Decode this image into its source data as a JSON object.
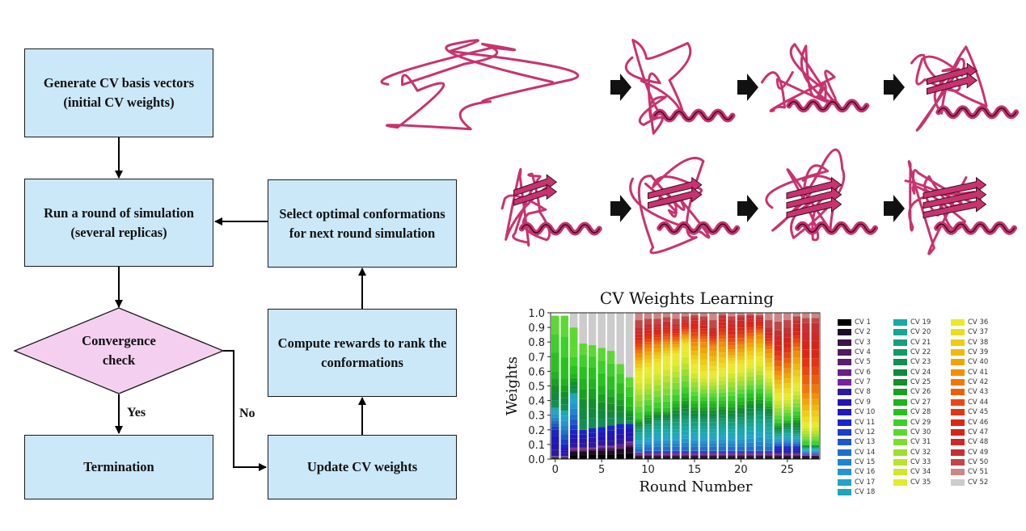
{
  "flowchart": {
    "nodes": {
      "generate": "Generate CV basis vectors (initial CV weights)",
      "run": "Run a round of simulation (several replicas)",
      "select": "Select optimal conformations for next round simulation",
      "convergence": "Convergence check",
      "compute": "Compute rewards to rank the conformations",
      "termination": "Termination",
      "update": "Update CV weights"
    },
    "edge_labels": {
      "yes": "Yes",
      "no": "No"
    }
  },
  "protein_panel": {
    "rows": 2,
    "frames_per_row": 4,
    "ribbon_color": "#c8336f"
  },
  "chart_data": {
    "type": "bar",
    "stacked": true,
    "title": "CV Weights Learning",
    "xlabel": "Round Number",
    "ylabel": "Weights",
    "x": [
      0,
      1,
      2,
      3,
      4,
      5,
      6,
      7,
      8,
      9,
      10,
      11,
      12,
      13,
      14,
      15,
      16,
      17,
      18,
      19,
      20,
      21,
      22,
      23,
      24,
      25,
      26,
      27,
      28
    ],
    "xticks": [
      0,
      5,
      10,
      15,
      20,
      25
    ],
    "ylim": [
      0,
      1.0
    ],
    "yticks": [
      "0.0",
      "0.1",
      "0.2",
      "0.3",
      "0.4",
      "0.5",
      "0.6",
      "0.7",
      "0.8",
      "0.9",
      "1.0"
    ],
    "legend_placement": "right, outside plot, 3 columns",
    "series_colors": [
      "#000000",
      "#1e0b26",
      "#3a1445",
      "#4e1a60",
      "#5b1c72",
      "#6a1f88",
      "#7a1fa0",
      "#2c1aa0",
      "#2414b0",
      "#1d18bf",
      "#1a25c8",
      "#1a3ec8",
      "#1c59c8",
      "#1f70c8",
      "#2284cb",
      "#2595d0",
      "#21a4c9",
      "#1da6b8",
      "#19a9a6",
      "#18a592",
      "#179f7d",
      "#139a68",
      "#118f52",
      "#0f8a3e",
      "#128f2a",
      "#17a21e",
      "#1db51c",
      "#28c21f",
      "#3bd02a",
      "#5cd833",
      "#80dc32",
      "#9ddf2d",
      "#b9e42b",
      "#cfe929",
      "#e4ec29",
      "#eee82b",
      "#eedc1f",
      "#eecd14",
      "#f0ba0c",
      "#f1a504",
      "#f28f05",
      "#f17706",
      "#ee5e0a",
      "#ea470f",
      "#e43412",
      "#de2616",
      "#d72418",
      "#cf2828",
      "#c53030",
      "#c24646",
      "#cd8585",
      "#cccccc"
    ],
    "legend": [
      "CV 1",
      "CV 2",
      "CV 3",
      "CV 4",
      "CV 5",
      "CV 6",
      "CV 7",
      "CV 8",
      "CV 9",
      "CV 10",
      "CV 11",
      "CV 12",
      "CV 13",
      "CV 14",
      "CV 15",
      "CV 16",
      "CV 17",
      "CV 18",
      "CV 19",
      "CV 20",
      "CV 21",
      "CV 22",
      "CV 23",
      "CV 24",
      "CV 25",
      "CV 26",
      "CV 27",
      "CV 28",
      "CV 29",
      "CV 30",
      "CV 31",
      "CV 32",
      "CV 33",
      "CV 34",
      "CV 35",
      "CV 36",
      "CV 37",
      "CV 38",
      "CV 39",
      "CV 40",
      "CV 41",
      "CV 42",
      "CV 43",
      "CV 44",
      "CV 45",
      "CV 46",
      "CV 47",
      "CV 48",
      "CV 49",
      "CV 50",
      "CV 51",
      "CV 52"
    ],
    "group_boundaries": [
      0.02,
      0.05,
      0.2,
      0.35,
      0.6,
      0.75,
      0.87,
      1.0
    ],
    "bars": [
      {
        "x": 0,
        "groups": [
          0.01,
          0.02,
          0.2,
          0.35,
          0.6,
          0.98,
          0.98,
          0.98
        ]
      },
      {
        "x": 1,
        "groups": [
          0.01,
          0.02,
          0.1,
          0.33,
          0.55,
          0.98,
          0.98,
          0.98
        ]
      },
      {
        "x": 2,
        "groups": [
          0.05,
          0.08,
          0.2,
          0.45,
          0.58,
          0.76,
          0.9,
          1.0
        ]
      },
      {
        "x": 3,
        "groups": [
          0.05,
          0.08,
          0.2,
          0.2,
          0.55,
          0.79,
          0.79,
          1.0
        ]
      },
      {
        "x": 4,
        "groups": [
          0.06,
          0.08,
          0.21,
          0.21,
          0.55,
          0.78,
          0.78,
          1.0
        ]
      },
      {
        "x": 5,
        "groups": [
          0.06,
          0.09,
          0.22,
          0.22,
          0.5,
          0.76,
          0.76,
          1.0
        ]
      },
      {
        "x": 6,
        "groups": [
          0.06,
          0.09,
          0.23,
          0.23,
          0.48,
          0.74,
          0.74,
          1.0
        ]
      },
      {
        "x": 7,
        "groups": [
          0.07,
          0.1,
          0.24,
          0.24,
          0.45,
          0.65,
          0.65,
          1.0
        ]
      },
      {
        "x": 8,
        "groups": [
          0.08,
          0.12,
          0.24,
          0.24,
          0.36,
          0.56,
          0.56,
          1.0
        ]
      },
      {
        "x": 9,
        "groups": [
          0.02,
          0.04,
          0.05,
          0.2,
          0.28,
          0.6,
          0.72,
          0.9,
          1.0
        ]
      },
      {
        "x": 10,
        "groups": [
          0.02,
          0.04,
          0.06,
          0.22,
          0.33,
          0.63,
          0.76,
          0.92,
          1.0
        ]
      },
      {
        "x": 11,
        "groups": [
          0.02,
          0.04,
          0.06,
          0.25,
          0.35,
          0.66,
          0.78,
          0.92,
          1.0
        ]
      },
      {
        "x": 12,
        "groups": [
          0.02,
          0.04,
          0.06,
          0.25,
          0.35,
          0.7,
          0.8,
          0.94,
          1.0
        ]
      },
      {
        "x": 13,
        "groups": [
          0.02,
          0.04,
          0.06,
          0.25,
          0.4,
          0.72,
          0.8,
          0.92,
          1.0
        ]
      },
      {
        "x": 14,
        "groups": [
          0.02,
          0.04,
          0.06,
          0.27,
          0.45,
          0.78,
          0.85,
          0.95,
          1.0
        ]
      },
      {
        "x": 15,
        "groups": [
          0.02,
          0.04,
          0.06,
          0.25,
          0.4,
          0.65,
          0.8,
          0.97,
          1.0
        ]
      },
      {
        "x": 16,
        "groups": [
          0.02,
          0.04,
          0.06,
          0.25,
          0.4,
          0.6,
          0.8,
          0.95,
          1.0
        ]
      },
      {
        "x": 17,
        "groups": [
          0.02,
          0.04,
          0.06,
          0.25,
          0.4,
          0.6,
          0.77,
          0.9,
          1.0
        ]
      },
      {
        "x": 18,
        "groups": [
          0.02,
          0.04,
          0.06,
          0.26,
          0.4,
          0.62,
          0.8,
          0.98,
          1.0
        ]
      },
      {
        "x": 19,
        "groups": [
          0.02,
          0.04,
          0.06,
          0.25,
          0.4,
          0.65,
          0.75,
          0.95,
          1.0
        ]
      },
      {
        "x": 20,
        "groups": [
          0.02,
          0.04,
          0.06,
          0.26,
          0.42,
          0.65,
          0.78,
          0.97,
          1.0
        ]
      },
      {
        "x": 21,
        "groups": [
          0.02,
          0.04,
          0.06,
          0.27,
          0.45,
          0.68,
          0.82,
          0.98,
          1.0
        ]
      },
      {
        "x": 22,
        "groups": [
          0.02,
          0.04,
          0.06,
          0.3,
          0.45,
          0.7,
          0.85,
          0.97,
          1.0
        ]
      },
      {
        "x": 23,
        "groups": [
          0.02,
          0.04,
          0.06,
          0.27,
          0.4,
          0.6,
          0.75,
          0.9,
          1.0
        ]
      },
      {
        "x": 24,
        "groups": [
          0.02,
          0.04,
          0.1,
          0.18,
          0.25,
          0.45,
          0.6,
          0.88,
          1.0
        ]
      },
      {
        "x": 25,
        "groups": [
          0.02,
          0.04,
          0.1,
          0.2,
          0.27,
          0.45,
          0.62,
          0.9,
          1.0
        ]
      },
      {
        "x": 26,
        "groups": [
          0.02,
          0.04,
          0.1,
          0.18,
          0.3,
          0.52,
          0.74,
          0.95,
          1.0
        ]
      },
      {
        "x": 27,
        "groups": [
          0.02,
          0.03,
          0.04,
          0.08,
          0.1,
          0.25,
          0.45,
          0.93,
          1.0
        ]
      },
      {
        "x": 28,
        "groups": [
          0.02,
          0.03,
          0.04,
          0.08,
          0.1,
          0.25,
          0.45,
          0.93,
          1.0
        ]
      }
    ]
  }
}
